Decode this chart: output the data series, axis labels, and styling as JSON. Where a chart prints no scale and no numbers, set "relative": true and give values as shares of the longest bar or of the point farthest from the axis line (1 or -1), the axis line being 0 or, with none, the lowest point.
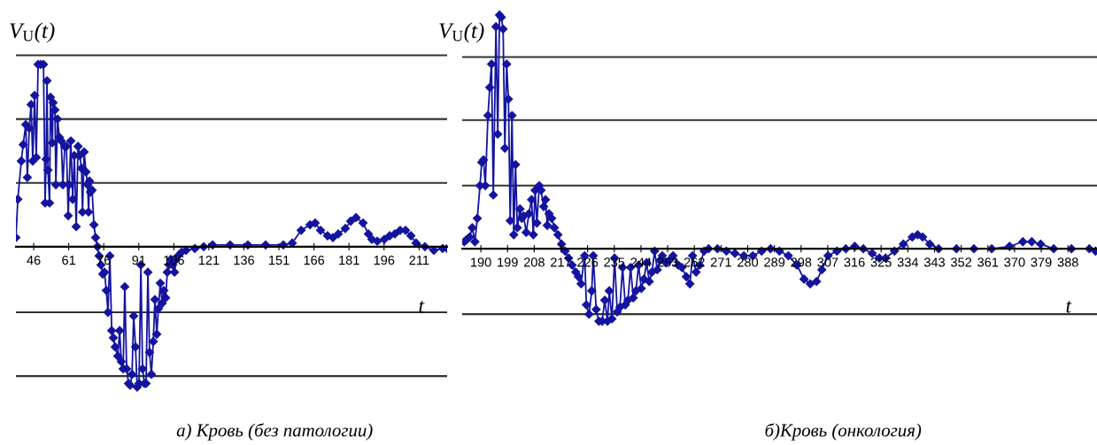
{
  "chart_data": [
    {
      "type": "line",
      "title": "а) Кровь (без патологии)",
      "xlabel": "t",
      "ylabel": "V$_{U}$(t)",
      "relative": true,
      "tick_labels": "x",
      "marker": "diamond",
      "line_style": "solid",
      "color": "#1414a0",
      "xlim": [
        38.4,
        223
      ],
      "xticks": [
        46,
        61,
        76,
        91,
        106,
        121,
        136,
        151,
        166,
        181,
        196,
        211
      ],
      "ref_lines": [
        {
          "axis": "y",
          "value": 1.05,
          "color": "#333333"
        },
        {
          "axis": "y",
          "value": 0.7,
          "color": "#333333"
        },
        {
          "axis": "y",
          "value": 0.35,
          "color": "#333333"
        },
        {
          "axis": "y",
          "value": -0.36,
          "color": "#333333"
        },
        {
          "axis": "y",
          "value": -0.71,
          "color": "#333333"
        }
      ],
      "x": [
        38.4,
        39.2,
        40.7,
        41.5,
        42.6,
        43.3,
        44.1,
        44.9,
        45.6,
        46.4,
        47.1,
        47.9,
        49.0,
        50.2,
        50.9,
        51.3,
        51.7,
        52.1,
        52.8,
        53.2,
        54.0,
        54.3,
        55.1,
        55.5,
        56.2,
        57.0,
        57.8,
        58.5,
        59.3,
        60.0,
        60.8,
        61.2,
        61.9,
        62.7,
        63.4,
        64.2,
        65.0,
        65.7,
        66.5,
        66.9,
        67.6,
        68.4,
        69.1,
        69.5,
        69.9,
        70.3,
        71.0,
        71.8,
        72.5,
        73.3,
        74.0,
        74.8,
        75.6,
        76.3,
        77.1,
        77.8,
        78.6,
        79.4,
        80.1,
        80.9,
        82.0,
        82.8,
        83.5,
        84.3,
        85.0,
        85.8,
        86.6,
        87.3,
        88.1,
        88.8,
        89.6,
        90.3,
        91.1,
        91.9,
        92.6,
        93.4,
        94.1,
        94.9,
        95.6,
        96.4,
        97.2,
        97.9,
        98.7,
        99.4,
        100.2,
        101.0,
        101.7,
        102.5,
        103.2,
        104.0,
        104.7,
        105.5,
        106.3,
        107.0,
        107.8,
        109.3,
        111.2,
        115.0,
        118.8,
        122.6,
        130.1,
        137.7,
        145.3,
        152.9,
        156.7,
        160.5,
        164.3,
        166.5,
        168.8,
        171.8,
        174.1,
        176.4,
        179.4,
        181.7,
        184.0,
        187.0,
        189.3,
        190.8,
        193.1,
        196.1,
        198.4,
        200.6,
        202.9,
        205.2,
        207.5,
        209.7,
        213.5,
        217.3,
        221.1,
        223.0
      ],
      "values": [
        0.05,
        0.26,
        0.47,
        0.56,
        0.67,
        0.38,
        0.65,
        0.78,
        0.47,
        0.83,
        0.49,
        1.0,
        1.0,
        1.0,
        0.24,
        0.48,
        0.91,
        0.42,
        0.24,
        0.82,
        0.57,
        0.79,
        0.75,
        0.34,
        0.7,
        0.6,
        0.58,
        0.34,
        0.55,
        0.55,
        0.17,
        0.34,
        0.58,
        0.26,
        0.5,
        0.11,
        0.55,
        0.5,
        0.43,
        0.19,
        0.52,
        0.41,
        0.34,
        0.19,
        0.36,
        0.3,
        0.31,
        0.12,
        0.05,
        0.0,
        -0.05,
        -0.1,
        -0.15,
        -0.14,
        -0.24,
        -0.36,
        -0.05,
        -0.46,
        -0.5,
        -0.55,
        -0.6,
        -0.46,
        -0.63,
        -0.67,
        -0.22,
        -0.67,
        -0.75,
        -0.76,
        -0.7,
        -0.38,
        -0.55,
        -0.77,
        -0.75,
        -0.1,
        -0.67,
        -0.75,
        -0.75,
        -0.14,
        -0.58,
        -0.7,
        -0.52,
        -0.29,
        -0.48,
        -0.34,
        -0.2,
        -0.31,
        -0.24,
        -0.28,
        -0.14,
        -0.1,
        -0.07,
        -0.1,
        -0.14,
        -0.07,
        -0.05,
        -0.03,
        -0.02,
        -0.01,
        0.0,
        0.01,
        0.01,
        0.01,
        0.01,
        0.01,
        0.02,
        0.09,
        0.12,
        0.13,
        0.09,
        0.06,
        0.05,
        0.07,
        0.1,
        0.14,
        0.16,
        0.13,
        0.07,
        0.04,
        0.03,
        0.04,
        0.06,
        0.07,
        0.09,
        0.09,
        0.06,
        0.02,
        0.0,
        -0.02,
        -0.01,
        -0.01
      ]
    },
    {
      "type": "line",
      "title": "б)Кровь (онкология)",
      "xlabel": "t",
      "ylabel": "V$_{U}$(t)",
      "relative": true,
      "tick_labels": "x",
      "marker": "diamond",
      "line_style": "solid",
      "color": "#1414a0",
      "xlim": [
        183.7,
        397.8
      ],
      "xticks": [
        190,
        199,
        208,
        217,
        226,
        235,
        244,
        253,
        262,
        271,
        280,
        289,
        298,
        307,
        316,
        325,
        334,
        343,
        352,
        361,
        370,
        379,
        388
      ],
      "ref_lines": [
        {
          "axis": "y",
          "value": 0.82,
          "color": "#333333"
        },
        {
          "axis": "y",
          "value": 0.55,
          "color": "#333333"
        },
        {
          "axis": "y",
          "value": 0.27,
          "color": "#333333"
        },
        {
          "axis": "y",
          "value": -0.28,
          "color": "#333333"
        }
      ],
      "x": [
        184.4,
        185.3,
        186.2,
        187.1,
        188.0,
        188.8,
        189.7,
        190.3,
        190.9,
        191.5,
        192.4,
        193.0,
        193.6,
        194.2,
        195.1,
        195.7,
        196.3,
        196.9,
        197.5,
        198.1,
        198.7,
        199.3,
        199.9,
        200.5,
        201.1,
        201.7,
        202.3,
        203.2,
        203.8,
        204.4,
        205.3,
        206.2,
        207.1,
        207.7,
        208.3,
        208.9,
        209.7,
        210.3,
        211.2,
        211.8,
        212.4,
        213.0,
        213.9,
        214.8,
        216.0,
        217.2,
        218.4,
        219.6,
        220.8,
        222.0,
        222.9,
        223.8,
        225.0,
        225.6,
        226.5,
        227.4,
        227.9,
        228.9,
        229.8,
        230.9,
        231.8,
        232.7,
        233.3,
        234.2,
        235.1,
        236.0,
        236.9,
        237.8,
        238.7,
        239.6,
        240.5,
        241.4,
        242.3,
        243.2,
        244.1,
        245.0,
        245.9,
        246.8,
        247.7,
        248.6,
        249.5,
        250.4,
        251.2,
        252.4,
        253.6,
        254.8,
        256.6,
        257.8,
        259.3,
        260.5,
        261.4,
        262.6,
        263.8,
        265.3,
        266.8,
        269.8,
        272.8,
        275.7,
        278.7,
        281.7,
        284.7,
        287.7,
        290.7,
        293.7,
        296.6,
        299.0,
        301.1,
        303.2,
        305.0,
        307.1,
        310.1,
        313.1,
        316.1,
        319.0,
        322.0,
        324.4,
        326.5,
        329.5,
        332.5,
        335.5,
        337.3,
        339.0,
        341.4,
        344.4,
        350.4,
        356.3,
        362.3,
        368.3,
        372.8,
        375.8,
        378.8,
        383.2,
        389.2,
        395.2,
        397.3
      ],
      "values": [
        0.03,
        0.04,
        0.05,
        0.09,
        0.03,
        0.13,
        0.27,
        0.37,
        0.38,
        0.27,
        0.57,
        0.69,
        0.79,
        0.23,
        0.95,
        0.49,
        1.0,
        0.99,
        0.94,
        0.43,
        0.79,
        0.64,
        0.12,
        0.57,
        0.06,
        0.36,
        0.09,
        0.17,
        0.13,
        0.14,
        0.07,
        0.15,
        0.21,
        0.06,
        0.25,
        0.11,
        0.27,
        0.25,
        0.18,
        0.21,
        0.1,
        0.15,
        0.13,
        0.09,
        0.06,
        0.02,
        -0.01,
        -0.04,
        -0.07,
        -0.1,
        -0.12,
        -0.15,
        -0.03,
        -0.24,
        -0.28,
        -0.18,
        -0.03,
        -0.26,
        -0.31,
        -0.31,
        -0.22,
        -0.31,
        -0.18,
        -0.3,
        -0.04,
        -0.27,
        -0.25,
        -0.08,
        -0.24,
        -0.22,
        -0.08,
        -0.21,
        -0.18,
        -0.07,
        -0.17,
        -0.13,
        -0.06,
        -0.14,
        -0.1,
        -0.01,
        -0.09,
        -0.05,
        -0.03,
        -0.06,
        -0.05,
        -0.03,
        -0.07,
        -0.08,
        -0.12,
        -0.15,
        -0.03,
        -0.1,
        -0.07,
        -0.01,
        0.0,
        0.0,
        -0.01,
        -0.02,
        -0.03,
        -0.03,
        -0.01,
        0.0,
        -0.01,
        -0.03,
        -0.07,
        -0.13,
        -0.15,
        -0.14,
        -0.09,
        -0.03,
        -0.01,
        0.0,
        0.01,
        0.0,
        -0.02,
        -0.04,
        -0.04,
        -0.01,
        0.02,
        0.05,
        0.06,
        0.05,
        0.02,
        0.0,
        0.0,
        0.0,
        0.0,
        0.01,
        0.03,
        0.03,
        0.02,
        0.0,
        0.0,
        0.0,
        -0.01
      ]
    }
  ]
}
